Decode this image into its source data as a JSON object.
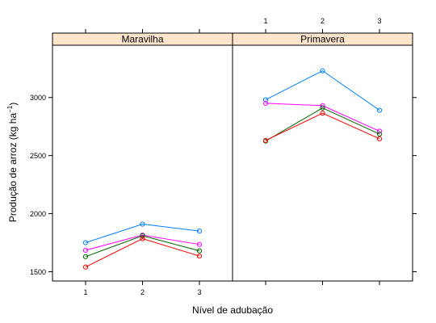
{
  "chart_data": {
    "type": "line",
    "xlabel": "Nível de adubação",
    "ylabel_main": "Produção de arroz (kg ha",
    "ylabel_sup": "−1",
    "ylabel_tail": ")",
    "x": [
      1,
      2,
      3
    ],
    "x_tick_labels": [
      "1",
      "2",
      "3"
    ],
    "ylim": [
      1420,
      3450
    ],
    "y_ticks": [
      1500,
      2000,
      2500,
      3000
    ],
    "grid": false,
    "strip_color": "#ffe5cc",
    "panels": [
      {
        "name": "Maravilha",
        "series": [
          {
            "color": "#0080ff",
            "values": [
              1750,
              1910,
              1850
            ]
          },
          {
            "color": "#ff00ff",
            "values": [
              1685,
              1815,
              1735
            ]
          },
          {
            "color": "#006400",
            "values": [
              1630,
              1810,
              1680
            ]
          },
          {
            "color": "#ff0000",
            "values": [
              1540,
              1785,
              1635
            ]
          }
        ]
      },
      {
        "name": "Primavera",
        "series": [
          {
            "color": "#0080ff",
            "values": [
              2980,
              3230,
              2890
            ]
          },
          {
            "color": "#ff00ff",
            "values": [
              2950,
              2930,
              2710
            ]
          },
          {
            "color": "#006400",
            "values": [
              2625,
              2910,
              2685
            ]
          },
          {
            "color": "#ff0000",
            "values": [
              2630,
              2865,
              2645
            ]
          }
        ]
      }
    ]
  }
}
